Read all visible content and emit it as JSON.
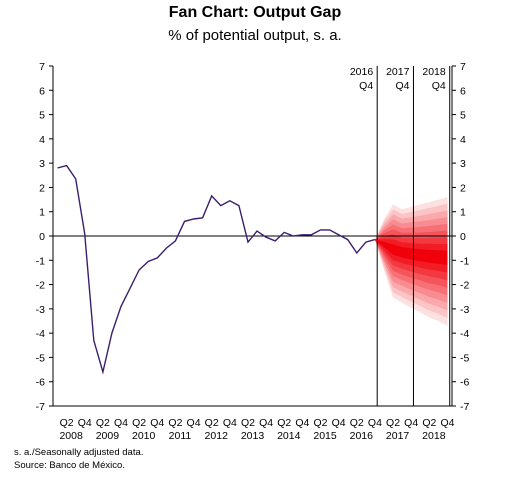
{
  "chart_data": {
    "type": "line",
    "title": "Fan Chart: Output Gap",
    "subtitle": "% of potential output, s. a.",
    "xlabel": "",
    "ylabel": "",
    "ylim": [
      -7,
      7
    ],
    "y_ticks": [
      -7,
      -6,
      -5,
      -4,
      -3,
      -2,
      -1,
      0,
      1,
      2,
      3,
      4,
      5,
      6,
      7
    ],
    "grid": false,
    "x_quarter_labels": [
      "Q2",
      "Q4",
      "Q2",
      "Q4",
      "Q2",
      "Q4",
      "Q2",
      "Q4",
      "Q2",
      "Q4",
      "Q2",
      "Q4",
      "Q2",
      "Q4",
      "Q2",
      "Q4",
      "Q2",
      "Q4",
      "Q2",
      "Q4",
      "Q2",
      "Q4"
    ],
    "x_year_labels": [
      "2008",
      "2009",
      "2010",
      "2011",
      "2012",
      "2013",
      "2014",
      "2015",
      "2016",
      "2017",
      "2018"
    ],
    "vertical_markers": [
      {
        "year": "2016",
        "quarter": "Q4"
      },
      {
        "year": "2017",
        "quarter": "Q4"
      },
      {
        "year": "2018",
        "quarter": "Q4"
      }
    ],
    "series": [
      {
        "x": [
          "2008Q1",
          "2008Q2",
          "2008Q3",
          "2008Q4",
          "2009Q1",
          "2009Q2",
          "2009Q3",
          "2009Q4",
          "2010Q1",
          "2010Q2",
          "2010Q3",
          "2010Q4",
          "2011Q1",
          "2011Q2",
          "2011Q3",
          "2011Q4",
          "2012Q1",
          "2012Q2",
          "2012Q3",
          "2012Q4",
          "2013Q1",
          "2013Q2",
          "2013Q3",
          "2013Q4",
          "2014Q1",
          "2014Q2",
          "2014Q3",
          "2014Q4",
          "2015Q1",
          "2015Q2",
          "2015Q3",
          "2015Q4",
          "2016Q1",
          "2016Q2",
          "2016Q3",
          "2016Q4"
        ],
        "values": [
          2.8,
          2.9,
          2.35,
          0.1,
          -4.3,
          -5.6,
          -4.0,
          -2.9,
          -2.15,
          -1.4,
          -1.05,
          -0.9,
          -0.5,
          -0.2,
          0.6,
          0.7,
          0.75,
          1.65,
          1.25,
          1.45,
          1.25,
          -0.25,
          0.2,
          -0.05,
          -0.2,
          0.15,
          0.0,
          0.05,
          0.05,
          0.25,
          0.25,
          0.05,
          -0.15,
          -0.7,
          -0.25,
          -0.15
        ]
      }
    ],
    "fan": {
      "x": [
        "2016Q4",
        "2017Q1",
        "2017Q2",
        "2017Q3",
        "2017Q4",
        "2018Q1",
        "2018Q2",
        "2018Q3",
        "2018Q4"
      ],
      "central": [
        -0.15,
        -0.35,
        -0.55,
        -0.65,
        -0.72,
        -0.78,
        -0.82,
        -0.85,
        -0.88
      ],
      "upper": [
        -0.15,
        0.7,
        1.3,
        1.1,
        1.2,
        1.3,
        1.4,
        1.5,
        1.6
      ],
      "lower": [
        -0.15,
        -1.4,
        -2.55,
        -2.75,
        -2.95,
        -3.15,
        -3.35,
        -3.5,
        -3.7
      ]
    },
    "notes": [
      "s. a./Seasonally adjusted data.",
      "Source: Banco de México."
    ],
    "colors": {
      "line": "#3b1f6e",
      "fan_outer": "#fde0e0",
      "fan_inner": "#f0000a",
      "axis": "#000000"
    }
  }
}
